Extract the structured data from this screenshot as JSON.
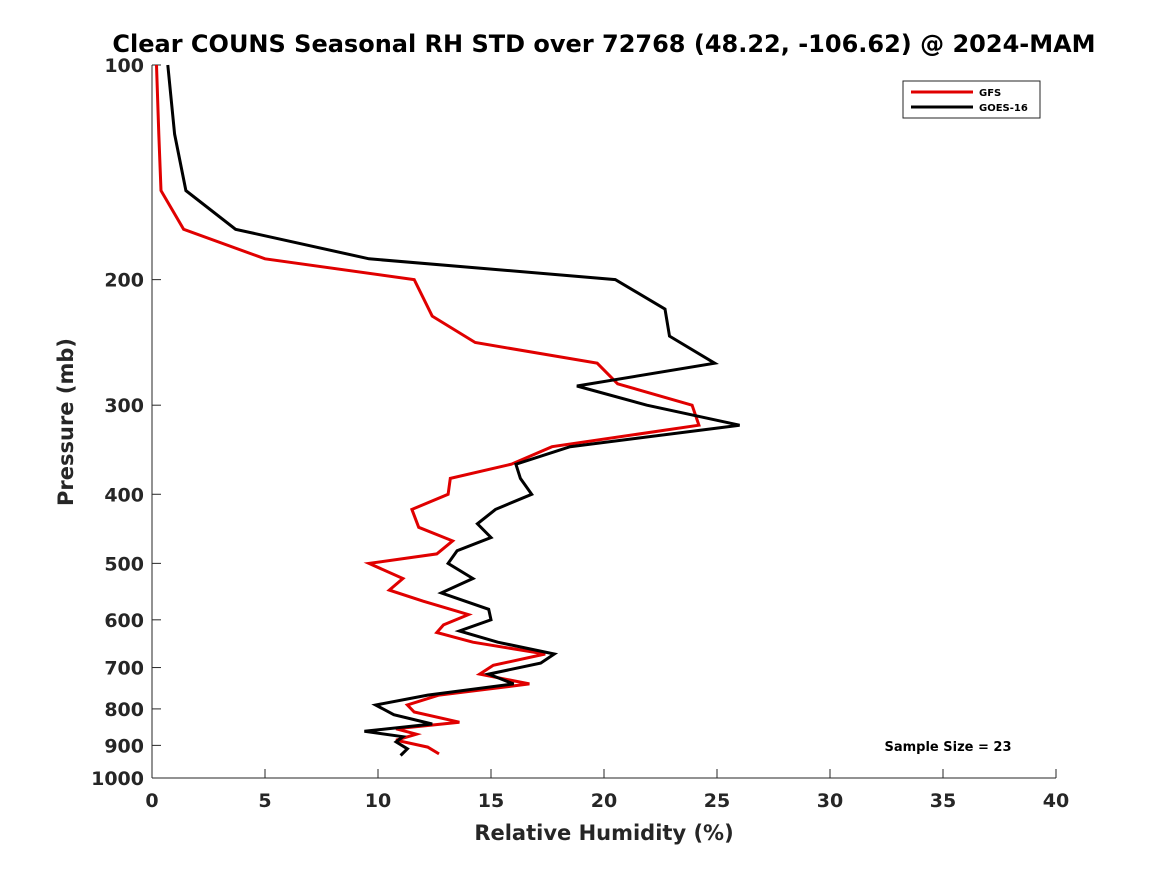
{
  "chart_data": {
    "type": "line",
    "title": "Clear COUNS Seasonal RH STD over 72768 (48.22, -106.62) @ 2024-MAM",
    "xlabel": "Relative Humidity (%)",
    "ylabel": "Pressure (mb)",
    "xlim": [
      0,
      40
    ],
    "ylim": [
      1000,
      100
    ],
    "yscale": "log",
    "xticks": [
      0,
      5,
      10,
      15,
      20,
      25,
      30,
      35,
      40
    ],
    "yticks": [
      100,
      200,
      300,
      400,
      500,
      600,
      700,
      800,
      900,
      1000
    ],
    "legend_position": "top-right",
    "annotation": "Sample Size = 23",
    "series": [
      {
        "name": "GFS",
        "color": "#e00000",
        "points": [
          [
            0.2,
            100
          ],
          [
            0.3,
            125
          ],
          [
            0.4,
            150
          ],
          [
            1.4,
            170
          ],
          [
            5.0,
            187
          ],
          [
            11.6,
            200
          ],
          [
            12.4,
            225
          ],
          [
            14.3,
            245
          ],
          [
            19.7,
            262
          ],
          [
            20.6,
            280
          ],
          [
            23.9,
            300
          ],
          [
            24.2,
            320
          ],
          [
            17.7,
            343
          ],
          [
            15.9,
            363
          ],
          [
            13.2,
            380
          ],
          [
            13.1,
            400
          ],
          [
            11.5,
            420
          ],
          [
            11.8,
            445
          ],
          [
            13.3,
            465
          ],
          [
            12.6,
            485
          ],
          [
            9.6,
            500
          ],
          [
            11.1,
            525
          ],
          [
            10.5,
            545
          ],
          [
            12.0,
            565
          ],
          [
            14.0,
            590
          ],
          [
            12.9,
            610
          ],
          [
            12.6,
            625
          ],
          [
            14.2,
            645
          ],
          [
            17.4,
            670
          ],
          [
            15.1,
            695
          ],
          [
            14.5,
            715
          ],
          [
            16.7,
            738
          ],
          [
            12.7,
            765
          ],
          [
            11.3,
            790
          ],
          [
            11.6,
            808
          ],
          [
            13.6,
            835
          ],
          [
            10.8,
            853
          ],
          [
            11.7,
            868
          ],
          [
            10.8,
            885
          ],
          [
            12.2,
            905
          ],
          [
            12.7,
            925
          ]
        ]
      },
      {
        "name": "GOES-16",
        "color": "#000000",
        "points": [
          [
            0.7,
            100
          ],
          [
            1.0,
            125
          ],
          [
            1.5,
            150
          ],
          [
            3.7,
            170
          ],
          [
            9.6,
            187
          ],
          [
            20.5,
            200
          ],
          [
            22.7,
            220
          ],
          [
            22.9,
            240
          ],
          [
            24.9,
            262
          ],
          [
            18.8,
            282
          ],
          [
            21.9,
            300
          ],
          [
            26.0,
            320
          ],
          [
            18.5,
            343
          ],
          [
            16.1,
            363
          ],
          [
            16.3,
            380
          ],
          [
            16.8,
            400
          ],
          [
            15.2,
            420
          ],
          [
            14.4,
            440
          ],
          [
            15.0,
            460
          ],
          [
            13.5,
            480
          ],
          [
            13.1,
            500
          ],
          [
            14.2,
            525
          ],
          [
            12.8,
            550
          ],
          [
            14.9,
            580
          ],
          [
            15.0,
            600
          ],
          [
            13.6,
            622
          ],
          [
            15.3,
            645
          ],
          [
            17.8,
            670
          ],
          [
            17.2,
            690
          ],
          [
            14.9,
            715
          ],
          [
            16.0,
            738
          ],
          [
            12.2,
            765
          ],
          [
            9.9,
            790
          ],
          [
            10.7,
            815
          ],
          [
            12.4,
            840
          ],
          [
            9.4,
            860
          ],
          [
            11.1,
            875
          ],
          [
            10.8,
            890
          ],
          [
            11.3,
            910
          ],
          [
            11.0,
            930
          ]
        ]
      }
    ]
  }
}
